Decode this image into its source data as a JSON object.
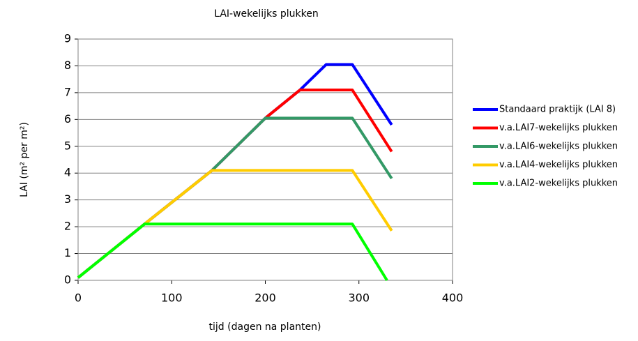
{
  "chart_data": {
    "type": "line",
    "title": "LAI-wekelijks plukken",
    "x_label": "tijd (dagen na planten)",
    "y_label": "LAI (m² per m²)",
    "xlim": [
      0,
      400
    ],
    "xticks": [
      0,
      100,
      200,
      300,
      400
    ],
    "ylim": [
      0,
      9
    ],
    "yticks": [
      0,
      1,
      2,
      3,
      4,
      5,
      6,
      7,
      8,
      9
    ],
    "grid": true,
    "legend": "right",
    "series": [
      {
        "name": "Standaard praktijk (LAI 8)",
        "color": "#0000ff",
        "x": [
          0,
          71,
          143,
          200,
          237,
          265,
          293,
          335
        ],
        "values": [
          0.1,
          2.1,
          4.1,
          6.05,
          7.1,
          8.05,
          8.05,
          5.8
        ]
      },
      {
        "name": "v.a.LAI7-wekelijks plukken",
        "color": "#ff0000",
        "x": [
          0,
          71,
          143,
          200,
          237,
          293,
          335
        ],
        "values": [
          0.1,
          2.1,
          4.1,
          6.05,
          7.1,
          7.1,
          4.8
        ]
      },
      {
        "name": "v.a.LAI6-wekelijks plukken",
        "color": "#339966",
        "x": [
          0,
          71,
          143,
          200,
          293,
          335
        ],
        "values": [
          0.1,
          2.1,
          4.1,
          6.05,
          6.05,
          3.8
        ]
      },
      {
        "name": "v.a.LAI4-wekelijks plukken",
        "color": "#ffcc00",
        "x": [
          0,
          71,
          143,
          293,
          335
        ],
        "values": [
          0.1,
          2.1,
          4.1,
          4.1,
          1.85
        ]
      },
      {
        "name": "v.a.LAI2-wekelijks plukken",
        "color": "#00ff00",
        "x": [
          0,
          71,
          293,
          330
        ],
        "values": [
          0.1,
          2.1,
          2.1,
          0
        ]
      }
    ]
  }
}
